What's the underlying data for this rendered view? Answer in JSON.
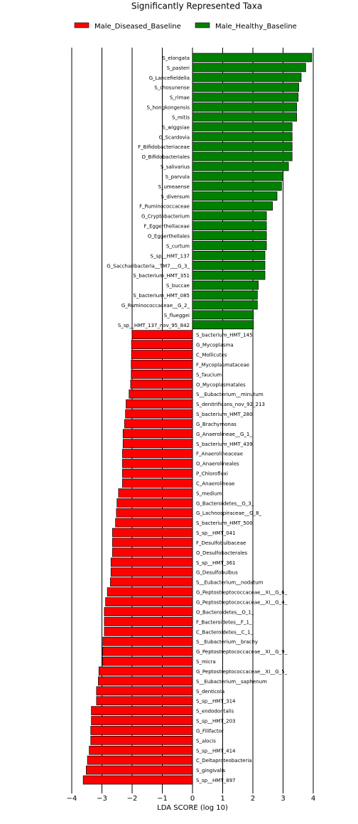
{
  "chart_data": {
    "type": "barh",
    "title": "Significantly Represented Taxa",
    "x_label": "LDA SCORE (log 10)",
    "categories": [
      "S_elongata",
      "S_pasteri",
      "G_Lancefieldella",
      "S_chosunense",
      "S_rimae",
      "S_hongkongensis",
      "S_mitis",
      "S_wiggsiae",
      "G_Scardovia",
      "F_Bifidobacteriaceae",
      "O_Bifidobacteriales",
      "S_salivarius",
      "S_parvula",
      "S_umeaense",
      "S_diversum",
      "F_Ruminococcaceae",
      "G_Cryptobacterium",
      "F_Eggerthellaceae",
      "O_Eggerthellales",
      "S_curtum",
      "S_sp__HMT_137",
      "G_Saccharibacteria__TM7___G_3_",
      "S_bacterium_HMT_351",
      "S_buccae",
      "S_bacterium_HMT_085",
      "G_Ruminococcaceae__G_2_",
      "S_flueggei",
      "S_sp__HMT_137_nov_95_842",
      "S_bacterium_HMT_145",
      "G_Mycoplasma",
      "C_Mollicutes",
      "F_Mycoplasmataceae",
      "S_faucium",
      "O_Mycoplasmatales",
      "S__Eubacterium__minutum",
      "S_denitrificans_nov_92_213",
      "S_bacterium_HMT_280",
      "G_Brachymonas",
      "G_Anaerolineae__G_1_",
      "S_bacterium_HMT_439",
      "F_Anaerolineaceae",
      "O_Anaerolineales",
      "P_Chloroflexi",
      "C_Anaerolineae",
      "S_medium",
      "G_Bacteroidetes__G_3_",
      "G_Lachnospiraceae__G_8_",
      "S_bacterium_HMT_500",
      "S_sp__HMT_041",
      "F_Desulfobulbaceae",
      "O_Desulfobacterales",
      "S_sp__HMT_361",
      "G_Desulfobulbus",
      "S__Eubacterium__nodatum",
      "G_Peptostreptococcaceae__XI__G_6_",
      "G_Peptostreptococcaceae__XI__G_4_",
      "O_Bacteroidetes__O_1_",
      "F_Bacteroidetes__F_1_",
      "C_Bacteroidetes__C_1_",
      "S__Eubacterium__brachy",
      "G_Peptostreptococcaceae__XI__G_9_",
      "S_micra",
      "G_Peptostreptococcaceae__XI__G_5_",
      "S__Eubacterium__saphenum",
      "S_denticola",
      "S_sp__HMT_314",
      "S_endodontalis",
      "S_sp__HMT_203",
      "G_Filifactor",
      "S_alocis",
      "S_sp__HMT_414",
      "C_Deltaproteobacteria",
      "S_gingivalis",
      "S_sp__HMT_897"
    ],
    "series": [
      {
        "name": "Male_Diseased_Baseline",
        "color": "#ff0000",
        "values": [
          null,
          null,
          null,
          null,
          null,
          null,
          null,
          null,
          null,
          null,
          null,
          null,
          null,
          null,
          null,
          null,
          null,
          null,
          null,
          null,
          null,
          null,
          null,
          null,
          null,
          null,
          null,
          null,
          -2.0,
          -2.02,
          -2.02,
          -2.03,
          -2.03,
          -2.05,
          -2.1,
          -2.2,
          -2.22,
          -2.25,
          -2.3,
          -2.3,
          -2.32,
          -2.32,
          -2.32,
          -2.32,
          -2.45,
          -2.5,
          -2.52,
          -2.55,
          -2.65,
          -2.65,
          -2.65,
          -2.7,
          -2.7,
          -2.72,
          -2.82,
          -2.88,
          -2.92,
          -2.92,
          -2.92,
          -2.97,
          -2.98,
          -2.98,
          -3.1,
          -3.12,
          -3.18,
          -3.18,
          -3.35,
          -3.35,
          -3.37,
          -3.37,
          -3.42,
          -3.48,
          -3.52,
          -3.62
        ]
      },
      {
        "name": "Male_Healthy_Baseline",
        "color": "#008000",
        "values": [
          3.95,
          3.75,
          3.6,
          3.52,
          3.5,
          3.45,
          3.45,
          3.3,
          3.3,
          3.3,
          3.3,
          3.18,
          3.0,
          2.95,
          2.8,
          2.65,
          2.45,
          2.45,
          2.45,
          2.45,
          2.4,
          2.4,
          2.4,
          2.18,
          2.15,
          2.15,
          2.02,
          2.02,
          null,
          null,
          null,
          null,
          null,
          null,
          null,
          null,
          null,
          null,
          null,
          null,
          null,
          null,
          null,
          null,
          null,
          null,
          null,
          null,
          null,
          null,
          null,
          null,
          null,
          null,
          null,
          null,
          null,
          null,
          null,
          null,
          null,
          null,
          null,
          null,
          null,
          null,
          null,
          null,
          null,
          null,
          null,
          null,
          null,
          null
        ]
      }
    ],
    "xlim": [
      -4.2,
      4.2
    ],
    "xticks": [
      {
        "value": -4,
        "label": "−4"
      },
      {
        "value": -3,
        "label": "−3"
      },
      {
        "value": -2,
        "label": "−2"
      },
      {
        "value": -1,
        "label": "−1"
      },
      0,
      1,
      2,
      3,
      4
    ],
    "grid": true
  }
}
